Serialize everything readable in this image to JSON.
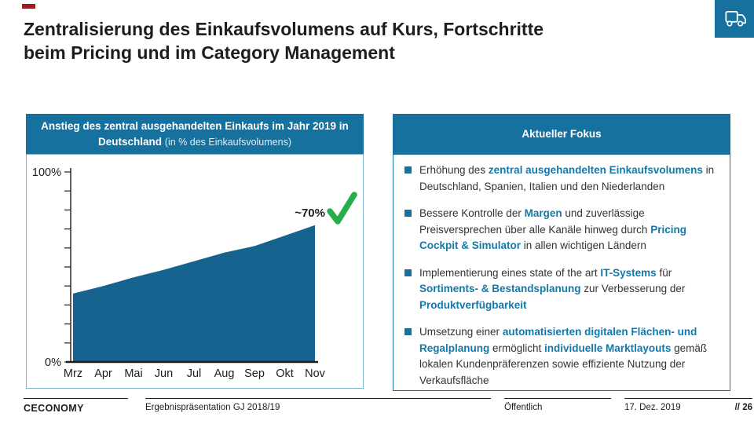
{
  "slide": {
    "title": "Zentralisierung des Einkaufsvolumens auf Kurs, Fortschritte beim Pricing und im Category Management",
    "title_lines": [
      "Zentralisierung des Einkaufsvolumens auf Kurs, Fortschritte",
      "beim Pricing und im Category Management"
    ]
  },
  "left_panel": {
    "header_title": "Anstieg des zentral ausgehandelten Einkaufs im Jahr 2019 in Deutschland",
    "header_subtitle": "(in % des Einkaufsvolumens)"
  },
  "chart_data": {
    "type": "area",
    "title": "Anstieg des zentral ausgehandelten Einkaufs im Jahr 2019 in Deutschland (in % des Einkaufsvolumens)",
    "categories": [
      "Mrz",
      "Apr",
      "Mai",
      "Jun",
      "Jul",
      "Aug",
      "Sep",
      "Okt",
      "Nov"
    ],
    "values": [
      36,
      40,
      44.5,
      48.5,
      53,
      57.5,
      61,
      66.5,
      72
    ],
    "xlabel": "",
    "ylabel": "% des Einkaufsvolumens",
    "ylim": [
      0,
      100
    ],
    "ytick_step": 10,
    "ytick_labels_shown": [
      "100%",
      "0%"
    ],
    "grid": false,
    "legend": "none",
    "annotation": {
      "text": "~70%",
      "icon": "green-checkmark"
    },
    "fill_color": "#15638e"
  },
  "right_panel": {
    "header_title": "Aktueller Fokus",
    "bullets": [
      {
        "segments": [
          {
            "t": "Erhöhung des ",
            "b": false
          },
          {
            "t": "zentral ausgehandelten Einkaufsvolumens",
            "b": true
          },
          {
            "t": " in Deutschland, Spanien, Italien und den Niederlanden",
            "b": false
          }
        ]
      },
      {
        "segments": [
          {
            "t": "Bessere Kontrolle der ",
            "b": false
          },
          {
            "t": "Margen",
            "b": true
          },
          {
            "t": " und zuverlässige Preisversprechen über alle Kanäle hinweg durch ",
            "b": false
          },
          {
            "t": "Pricing Cockpit & Simulator",
            "b": true
          },
          {
            "t": " in allen wichtigen Ländern",
            "b": false
          }
        ]
      },
      {
        "segments": [
          {
            "t": "Implementierung eines state of the art ",
            "b": false
          },
          {
            "t": "IT-Systems",
            "b": true
          },
          {
            "t": " für ",
            "b": false
          },
          {
            "t": "Sortiments- & Bestandsplanung",
            "b": true
          },
          {
            "t": " zur Verbesserung der ",
            "b": false
          },
          {
            "t": "Produktverfügbarkeit",
            "b": true
          }
        ]
      },
      {
        "segments": [
          {
            "t": "Umsetzung einer ",
            "b": false
          },
          {
            "t": "automatisierten digitalen Flächen- und Regalplanung",
            "b": true
          },
          {
            "t": " ermöglicht ",
            "b": false
          },
          {
            "t": "individuelle Marktlayouts",
            "b": true
          },
          {
            "t": " gemäß lokalen Kundenpräferenzen sowie effiziente Nutzung der Verkaufsfläche",
            "b": false
          }
        ]
      }
    ]
  },
  "footer": {
    "brand": "CECONOMY",
    "presentation": "Ergebnispräsentation GJ 2018/19",
    "classification": "Öffentlich",
    "date": "17. Dez. 2019",
    "page": "// 26"
  },
  "colors": {
    "brand_teal": "#16719f",
    "area_fill": "#15638e",
    "accent_text": "#1478a9",
    "check_green": "#27ae49",
    "red_dash": "#9c1b23"
  }
}
